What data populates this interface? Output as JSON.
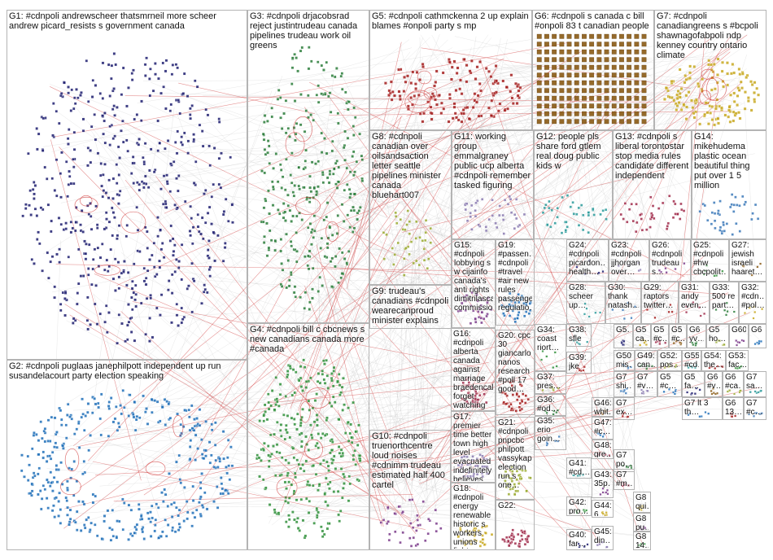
{
  "theme": {
    "group_colors": [
      "#1c1c6e",
      "#1e6fb8",
      "#2a7d3a",
      "#2f8f3a",
      "#a31c1c",
      "#8a5a14",
      "#c8a820",
      "#9aaa30",
      "#8a7ab0",
      "#2a9a9a",
      "#a02a4a",
      "#3a78b8",
      "#7a3a8a",
      "#6a6a6a"
    ],
    "edge_color": "#bbbbbb",
    "highlight_edge_color": "#d23b3b",
    "box_border": "#b4b4b4"
  },
  "groups": [
    {
      "id": "G1",
      "label": "G1: #cdnpoli andrewscheer thatsmrneil more scheer andrew picard_resists s government canada"
    },
    {
      "id": "G2",
      "label": "G2: #cdnpoli puglaas janephilpott independent up run susandelacourt party election speaking"
    },
    {
      "id": "G3",
      "label": "G3: #cdnpoli drjacobsrad reject justintrudeau canada pipelines trudeau work oil greens"
    },
    {
      "id": "G4",
      "label": "G4: #cdnpoli bill c cbcnews s new canadians canada more #canada"
    },
    {
      "id": "G5",
      "label": "G5: #cdnpoli cathmckenna 2 up explain blames #onpoli party s mp"
    },
    {
      "id": "G6",
      "label": "G6: #cdnpoli s canada c bill #onpoli 83 t canadian people"
    },
    {
      "id": "G7",
      "label": "G7: #cdnpoli canadiangreens s #bcpoli shawnagofabpoli ndp kenney country ontario climate"
    },
    {
      "id": "G8",
      "label": "G8: #cdnpoli canadian over oilsandsaction letter seattle pipelines minister canada bluehart007"
    },
    {
      "id": "G9",
      "label": "G9: trudeau's canadians #cdnpoli wearecanproud minister explains #mustwatch speaking bar friday"
    },
    {
      "id": "G10",
      "label": "G10: #cdnpoli truenorthcentre loud noises #cdnimm trudeau estimated half 400 cartel"
    },
    {
      "id": "G11",
      "label": "G11: working group emmalgraney public ucp alberta #cdnpoli remember tasked figuring"
    },
    {
      "id": "G12",
      "label": "G12: people pls share ford gtlem real doug public kids w"
    },
    {
      "id": "G13",
      "label": "G13: #cdnpoli s liberal torontostar stop media rules candidate different independent"
    },
    {
      "id": "G14",
      "label": "G14: mikehudema plastic ocean beautiful thing put over 1 5 million"
    },
    {
      "id": "G15",
      "label": "G15: #cdnpoli lobbying s w cijainfo canada's anti rights dimitrilascaris commissioner"
    },
    {
      "id": "G16",
      "label": "G16: #cdnpoli alberta canada against marriage braedencaley forget watching speeches mps"
    },
    {
      "id": "G17",
      "label": "G17: premier time better town high level evacuated indefinitely believes spent"
    },
    {
      "id": "G18",
      "label": "G18: #cdnpoli energy renewable historic s workers unions fight…"
    },
    {
      "id": "G19",
      "label": "G19: #passen… #cdnpoli #travel #air new rules passenger regulatio…"
    },
    {
      "id": "G20",
      "label": "G20: cpc 30 giancarlo… nanos research #poll 17 good…"
    },
    {
      "id": "G21",
      "label": "G21: #cdnpoli pnpcbc philpott vassykap… election run s one…"
    },
    {
      "id": "G22",
      "label": "G22:"
    },
    {
      "id": "G23",
      "label": "G23: #cdnpoli jjhorgan over…"
    },
    {
      "id": "G24",
      "label": "G24: #cdnpoli picardon… health…"
    },
    {
      "id": "G25",
      "label": "G25: #cdnpoli #hw cbcpolit…"
    },
    {
      "id": "G26",
      "label": "G26: #cdnpoli trudeau s…"
    },
    {
      "id": "G27",
      "label": "G27: jewish israeli haaret…"
    },
    {
      "id": "G28",
      "label": "G28: scheer up…"
    },
    {
      "id": "G29",
      "label": "G29: raptors twitter…"
    },
    {
      "id": "G30",
      "label": "G30: thank natash…"
    },
    {
      "id": "G31",
      "label": "G31: andy even…"
    },
    {
      "id": "G32",
      "label": "G32: #cdn… #pol…"
    },
    {
      "id": "G33",
      "label": "G33: 500 re part…"
    },
    {
      "id": "G34",
      "label": "G34: coast riort…"
    },
    {
      "id": "G35",
      "label": "G35: erio goin…"
    },
    {
      "id": "G36",
      "label": "G36: #od… out…"
    },
    {
      "id": "G37",
      "label": "G37: pres… mac…"
    },
    {
      "id": "G38",
      "label": "G38: sfle wis…"
    },
    {
      "id": "G39",
      "label": "G39: jke arp…"
    },
    {
      "id": "G40",
      "label": "G40: far…"
    },
    {
      "id": "G41",
      "label": "G41: #cd…"
    },
    {
      "id": "G42",
      "label": "G42: pro…"
    },
    {
      "id": "G43",
      "label": "G43: 35p…"
    },
    {
      "id": "G44",
      "label": "G44: 6…"
    },
    {
      "id": "G45",
      "label": "G45: din…"
    },
    {
      "id": "G46",
      "label": "G46: whit…"
    },
    {
      "id": "G47",
      "label": "G47: #c…"
    },
    {
      "id": "G48",
      "label": "G48: gre…"
    },
    {
      "id": "G49",
      "label": "G49: can…"
    },
    {
      "id": "G50",
      "label": "G50: mis…"
    },
    {
      "id": "G51",
      "label": "G5…"
    },
    {
      "id": "G52",
      "label": "G52: pos…"
    },
    {
      "id": "G53",
      "label": "G53: fac…"
    },
    {
      "id": "G54",
      "label": "G54: the…"
    },
    {
      "id": "G55",
      "label": "G55: #cd…"
    },
    {
      "id": "G60",
      "label": "G60"
    },
    {
      "id": "G6x",
      "label": "G6"
    },
    {
      "id": "G5a",
      "label": "G5 ca…"
    },
    {
      "id": "G5b",
      "label": "G5 #c…"
    },
    {
      "id": "G5c",
      "label": "G5 #c…"
    },
    {
      "id": "G5d",
      "label": "G5 ho…"
    },
    {
      "id": "G6a",
      "label": "G6 yv…"
    },
    {
      "id": "G5e",
      "label": "G5 #c…"
    },
    {
      "id": "G7a",
      "label": "G7 shi…"
    },
    {
      "id": "G7b",
      "label": "G7 ex…"
    },
    {
      "id": "G7c",
      "label": "G7 #v…"
    },
    {
      "id": "G7d",
      "label": "G7 po…"
    },
    {
      "id": "G7e",
      "label": "G7 #m…"
    },
    {
      "id": "G8a",
      "label": "G8 qui…"
    },
    {
      "id": "G8b",
      "label": "G8 pu…"
    },
    {
      "id": "G8c",
      "label": "G8 14…"
    },
    {
      "id": "G5f",
      "label": "G5 fa…"
    },
    {
      "id": "G6b",
      "label": "G6 #v…"
    },
    {
      "id": "G6c",
      "label": "G6 #ca…"
    },
    {
      "id": "G7f",
      "label": "G7 sa…"
    },
    {
      "id": "G6d",
      "label": "G6 13…"
    },
    {
      "id": "G7g",
      "label": "G7 #c…"
    },
    {
      "id": "G7h",
      "label": "G7 lt 3 th…"
    }
  ]
}
